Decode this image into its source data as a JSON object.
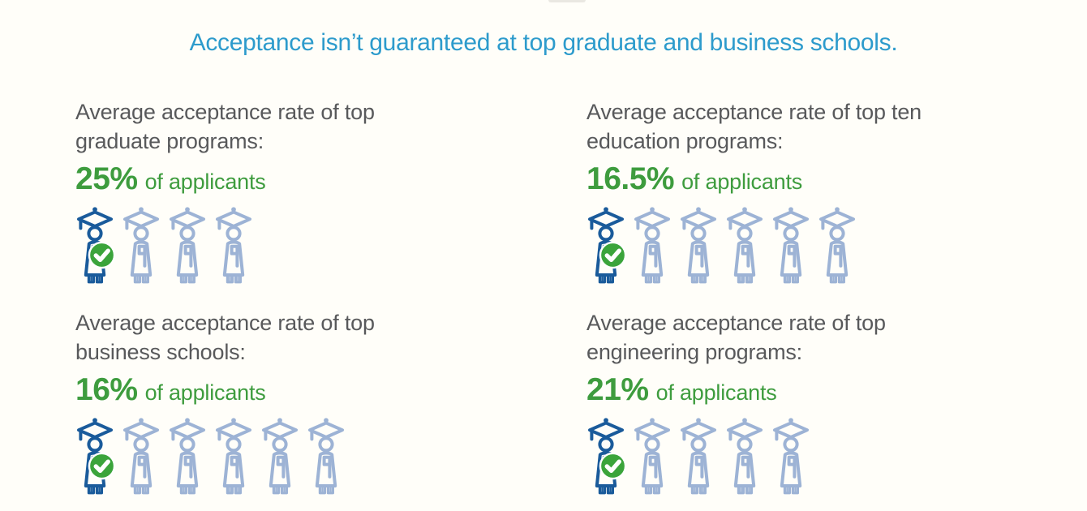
{
  "title": {
    "text": "Acceptance isn’t guaranteed at top graduate and business schools."
  },
  "colors": {
    "background": "#FFFEF9",
    "title_blue": "#2D9BCC",
    "label_gray": "#58595B",
    "stat_green": "#3E9C3E",
    "accepted_icon_blue": "#1A5B9B",
    "applicant_icon_blue": "#9DB3D5",
    "badge_green": "#3BA43B",
    "badge_check": "#FFFFFF"
  },
  "stats": [
    {
      "name": "top-graduate-programs",
      "label_line1": "Average acceptance rate of top",
      "label_line2": "graduate programs:",
      "value": "25%",
      "suffix": "of applicants",
      "icon": "graduate-student",
      "icons_total": 4,
      "icons_accepted": 1
    },
    {
      "name": "top-ten-education-programs",
      "label_line1": "Average acceptance rate of top ten",
      "label_line2": "education programs:",
      "value": "16.5%",
      "suffix": "of applicants",
      "icon": "graduate-student",
      "icons_total": 6,
      "icons_accepted": 1
    },
    {
      "name": "top-business-schools",
      "label_line1": "Average acceptance rate of top",
      "label_line2": "business schools:",
      "value": "16%",
      "suffix": "of applicants",
      "icon": "graduate-student",
      "icons_total": 6,
      "icons_accepted": 1
    },
    {
      "name": "top-engineering-programs",
      "label_line1": "Average acceptance rate of top",
      "label_line2": "engineering programs:",
      "value": "21%",
      "suffix": "of applicants",
      "icon": "graduate-student",
      "icons_total": 5,
      "icons_accepted": 1
    }
  ],
  "chart_data": {
    "type": "bar",
    "subtype": "pictograph",
    "title": "Acceptance isn’t guaranteed at top graduate and business schools.",
    "categories": [
      "Top graduate programs",
      "Top ten education programs",
      "Top business schools",
      "Top engineering programs"
    ],
    "values": [
      25,
      16.5,
      16,
      21
    ],
    "unit": "% of applicants accepted",
    "icons_per_category": [
      4,
      6,
      6,
      5
    ],
    "highlighted_icons_per_category": [
      1,
      1,
      1,
      1
    ],
    "grid": false,
    "legend_position": "none"
  }
}
